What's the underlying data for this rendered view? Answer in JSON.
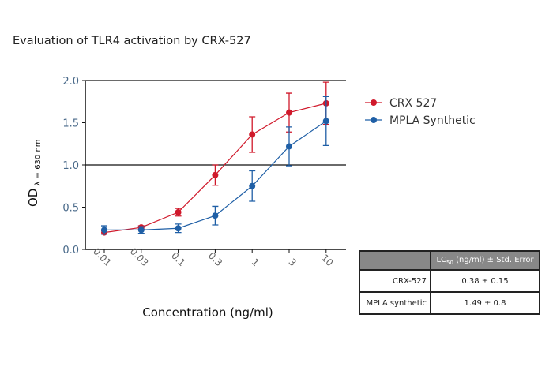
{
  "chart_data": {
    "type": "line",
    "title": "Evaluation of TLR4 activation by CRX-527",
    "xlabel": "Concentration (ng/ml)",
    "ylabel": "OD",
    "ylabel_sub": "λ = 630 nm",
    "x_scale": "log",
    "categories": [
      "0.01",
      "0.03",
      "0.1",
      "0.3",
      "1",
      "3",
      "10"
    ],
    "ylim": [
      0,
      2.0
    ],
    "yticks": [
      "0.0",
      "0.5",
      "1.0",
      "1.5",
      "2.0"
    ],
    "reference_line_y": 1.0,
    "legend_position": "right",
    "series": [
      {
        "name": "CRX 527",
        "color": "#d0192b",
        "values": [
          0.2,
          0.26,
          0.44,
          0.88,
          1.36,
          1.62,
          1.73
        ],
        "errors": [
          0.02,
          0.02,
          0.045,
          0.12,
          0.21,
          0.23,
          0.25
        ]
      },
      {
        "name": "MPLA Synthetic",
        "color": "#1f5fa6",
        "values": [
          0.23,
          0.23,
          0.25,
          0.4,
          0.75,
          1.22,
          1.52
        ],
        "errors": [
          0.05,
          0.04,
          0.05,
          0.11,
          0.18,
          0.23,
          0.29
        ]
      }
    ]
  },
  "table": {
    "header_main": "LC",
    "header_sub": "50",
    "header_rest": " (ng/ml) ± Std. Error",
    "rows": [
      {
        "name": "CRX-527",
        "value": "0.38 ± 0.15"
      },
      {
        "name": "MPLA synthetic",
        "value": "1.49 ± 0.8"
      }
    ]
  }
}
